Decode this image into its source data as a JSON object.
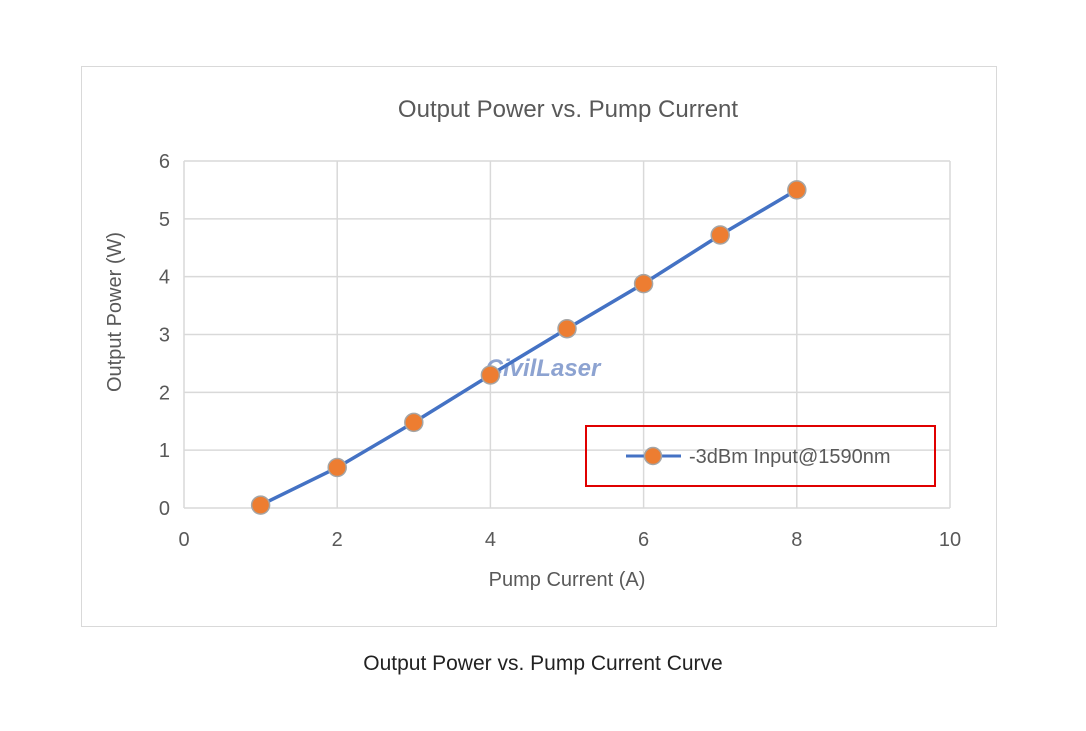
{
  "caption": "Output Power vs. Pump Current Curve",
  "watermark": "CivilLaser",
  "colors": {
    "series_line": "#4472c4",
    "marker_fill": "#ed7d31",
    "marker_stroke": "#a5a5a5",
    "grid": "#d9d9d9",
    "legend_highlight_box": "#e00000"
  },
  "chart_data": {
    "type": "scatter",
    "title": "Output Power vs. Pump Current",
    "xlabel": "Pump Current (A)",
    "ylabel": "Output Power (W)",
    "xlim": [
      0,
      10
    ],
    "ylim": [
      0,
      6
    ],
    "xticks": [
      0,
      2,
      4,
      6,
      8,
      10
    ],
    "yticks": [
      0,
      1,
      2,
      3,
      4,
      5,
      6
    ],
    "grid": true,
    "legend_position": "bottom-right",
    "series": [
      {
        "name": "-3dBm Input@1590nm",
        "x": [
          1,
          2,
          3,
          4,
          5,
          6,
          7,
          8
        ],
        "y": [
          0.05,
          0.7,
          1.48,
          2.3,
          3.1,
          3.88,
          4.72,
          5.5
        ]
      }
    ]
  }
}
